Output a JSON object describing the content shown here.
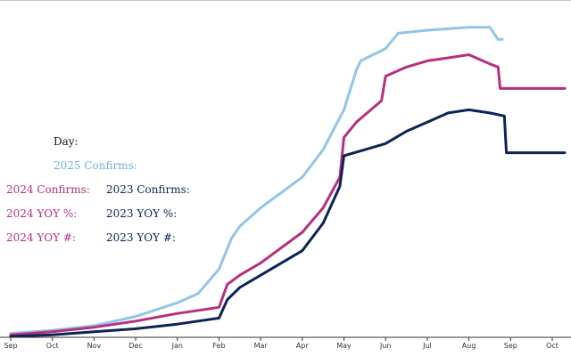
{
  "chart_data": {
    "type": "line",
    "title": "",
    "xlabel": "",
    "ylabel": "",
    "x_ticks": [
      "Sep",
      "Oct",
      "Nov",
      "Dec",
      "Jan",
      "Feb",
      "Mar",
      "Apr",
      "May",
      "Jun",
      "Jul",
      "Aug",
      "Sep",
      "Oct"
    ],
    "x_range_months": [
      0,
      13.3
    ],
    "ylim": [
      0,
      100
    ],
    "grid": false,
    "legend": {
      "day_label": "Day:",
      "confirms_2025": "2025 Confirms:",
      "confirms_2024": "2024 Confirms:",
      "confirms_2023": "2023 Confirms:",
      "yoy_pct_2024": "2024 YOY %:",
      "yoy_pct_2023": "2023 YOY %:",
      "yoy_num_2024": "2024 YOY #:",
      "yoy_num_2023": "2023 YOY #:"
    },
    "series": [
      {
        "name": "2025 Confirms",
        "color": "#93c5e6",
        "points": [
          [
            0,
            1
          ],
          [
            1,
            2
          ],
          [
            2,
            3.5
          ],
          [
            3,
            6.5
          ],
          [
            4,
            11
          ],
          [
            4.5,
            14
          ],
          [
            5,
            22
          ],
          [
            5.3,
            32
          ],
          [
            5.5,
            36
          ],
          [
            6,
            42
          ],
          [
            7,
            52
          ],
          [
            7.5,
            61
          ],
          [
            8,
            74
          ],
          [
            8.3,
            87
          ],
          [
            8.4,
            90
          ],
          [
            9,
            94
          ],
          [
            9.3,
            99
          ],
          [
            10,
            100
          ],
          [
            11,
            101
          ],
          [
            11.5,
            101
          ],
          [
            11.7,
            97
          ],
          [
            11.8,
            97
          ]
        ]
      },
      {
        "name": "2024 Confirms",
        "color": "#b5307f",
        "points": [
          [
            0,
            0.5
          ],
          [
            1,
            1.5
          ],
          [
            2,
            3
          ],
          [
            3,
            5
          ],
          [
            4,
            7.5
          ],
          [
            4.5,
            8.5
          ],
          [
            5,
            9.5
          ],
          [
            5.2,
            17
          ],
          [
            5.5,
            20
          ],
          [
            6,
            24
          ],
          [
            7,
            34
          ],
          [
            7.5,
            42
          ],
          [
            7.9,
            52
          ],
          [
            8,
            65
          ],
          [
            8.3,
            70
          ],
          [
            8.9,
            77
          ],
          [
            9,
            85
          ],
          [
            9.5,
            88
          ],
          [
            10,
            90
          ],
          [
            10.5,
            91
          ],
          [
            11,
            92
          ],
          [
            11.5,
            89
          ],
          [
            11.7,
            88
          ],
          [
            11.75,
            81
          ],
          [
            13.3,
            81
          ]
        ]
      },
      {
        "name": "2023 Confirms",
        "color": "#0c2454",
        "points": [
          [
            0,
            0
          ],
          [
            1,
            0.5
          ],
          [
            2,
            1.5
          ],
          [
            3,
            2.5
          ],
          [
            4,
            4
          ],
          [
            5,
            6
          ],
          [
            5.2,
            12
          ],
          [
            5.5,
            16
          ],
          [
            6,
            20
          ],
          [
            7,
            28
          ],
          [
            7.5,
            37
          ],
          [
            7.9,
            49
          ],
          [
            8,
            59
          ],
          [
            8.5,
            61
          ],
          [
            9,
            63
          ],
          [
            9.5,
            67
          ],
          [
            10,
            70
          ],
          [
            10.5,
            73
          ],
          [
            11,
            74
          ],
          [
            11.5,
            73
          ],
          [
            11.85,
            72
          ],
          [
            11.9,
            60
          ],
          [
            13.3,
            60
          ]
        ]
      }
    ]
  }
}
